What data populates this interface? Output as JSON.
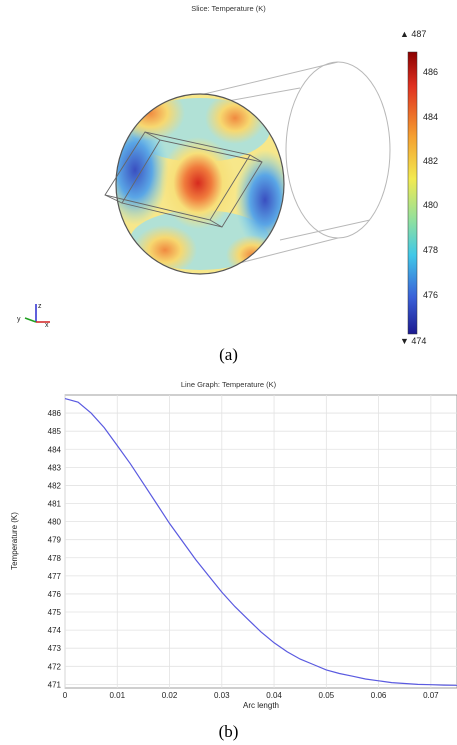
{
  "panel_a": {
    "title": "Slice: Temperature (K)",
    "caption": "(a)",
    "colorbar": {
      "max_label": "▲ 487",
      "min_label": "▼ 474",
      "ticks": [
        "486",
        "484",
        "482",
        "480",
        "478",
        "476"
      ]
    },
    "triad": {
      "x": "x",
      "y": "y",
      "z": "z"
    },
    "colors": {
      "hot": "#d62a1e",
      "cold": "#2b3fa8"
    }
  },
  "chart_data": [
    {
      "type": "line",
      "title": "Line Graph: Temperature (K)",
      "xlabel": "Arc length",
      "ylabel": "Temperature (K)",
      "xlim": [
        0,
        0.075
      ],
      "ylim": [
        470.8,
        487
      ],
      "x_ticks": [
        "0",
        "0.01",
        "0.02",
        "0.03",
        "0.04",
        "0.05",
        "0.06",
        "0.07"
      ],
      "y_ticks": [
        "486",
        "485",
        "484",
        "483",
        "482",
        "481",
        "480",
        "479",
        "478",
        "477",
        "476",
        "475",
        "474",
        "473",
        "472",
        "471"
      ],
      "grid": true,
      "series": [
        {
          "color": "#5a5ae0",
          "x": [
            0,
            0.0025,
            0.005,
            0.0075,
            0.01,
            0.0125,
            0.015,
            0.0175,
            0.02,
            0.0225,
            0.025,
            0.0275,
            0.03,
            0.0325,
            0.035,
            0.0375,
            0.04,
            0.0425,
            0.045,
            0.0475,
            0.05,
            0.0525,
            0.055,
            0.0575,
            0.06,
            0.0625,
            0.065,
            0.0675,
            0.07,
            0.0725,
            0.075
          ],
          "y": [
            486.8,
            486.6,
            486.0,
            485.2,
            484.2,
            483.2,
            482.1,
            481.0,
            479.9,
            478.9,
            477.9,
            477.0,
            476.1,
            475.3,
            474.6,
            473.9,
            473.3,
            472.8,
            472.4,
            472.1,
            471.8,
            471.6,
            471.45,
            471.3,
            471.2,
            471.1,
            471.05,
            471.0,
            470.98,
            470.96,
            470.95
          ]
        }
      ]
    }
  ],
  "panel_b": {
    "caption": "(b)"
  }
}
